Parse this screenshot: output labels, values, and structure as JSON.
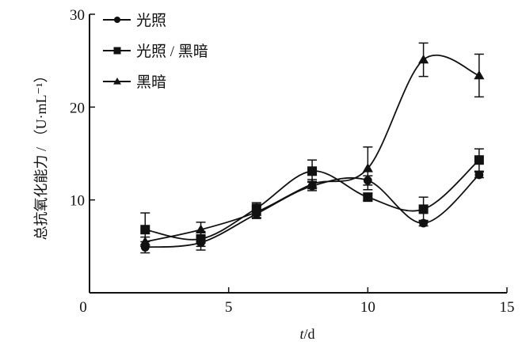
{
  "chart_data": {
    "type": "line",
    "title": "",
    "xlabel_italic": "t",
    "xlabel_rest": "/d",
    "ylabel": "总抗氧化能力 / （U·mL⁻¹）",
    "xlim": [
      0,
      15
    ],
    "ylim": [
      0,
      30
    ],
    "xticks": [
      0,
      5,
      10,
      15
    ],
    "yticks": [
      10,
      20,
      30
    ],
    "ytick_labels": [
      "10",
      "20",
      "30"
    ],
    "origin_label": "0",
    "grid": false,
    "legend_placement": "top-left",
    "x": [
      2,
      4,
      6,
      8,
      10,
      12,
      14
    ],
    "series": [
      {
        "name": "光照",
        "marker": "circle",
        "values": [
          4.9,
          5.4,
          8.5,
          11.5,
          12.1,
          7.5,
          12.7
        ],
        "errors": [
          0.6,
          0.8,
          0.5,
          0.5,
          0.5,
          0.3,
          0.3
        ]
      },
      {
        "name": "光照 / 黑暗",
        "marker": "square",
        "values": [
          6.8,
          5.8,
          9.1,
          13.1,
          10.3,
          9.0,
          14.3
        ],
        "errors": [
          1.8,
          0.8,
          0.6,
          1.2,
          0.4,
          1.3,
          1.2
        ]
      },
      {
        "name": "黑暗",
        "marker": "triangle",
        "values": [
          5.5,
          6.8,
          8.7,
          11.7,
          13.4,
          25.1,
          23.4
        ],
        "errors": [
          0.5,
          0.8,
          0.6,
          0.5,
          2.3,
          1.8,
          2.3
        ]
      }
    ],
    "color": "#111111"
  }
}
